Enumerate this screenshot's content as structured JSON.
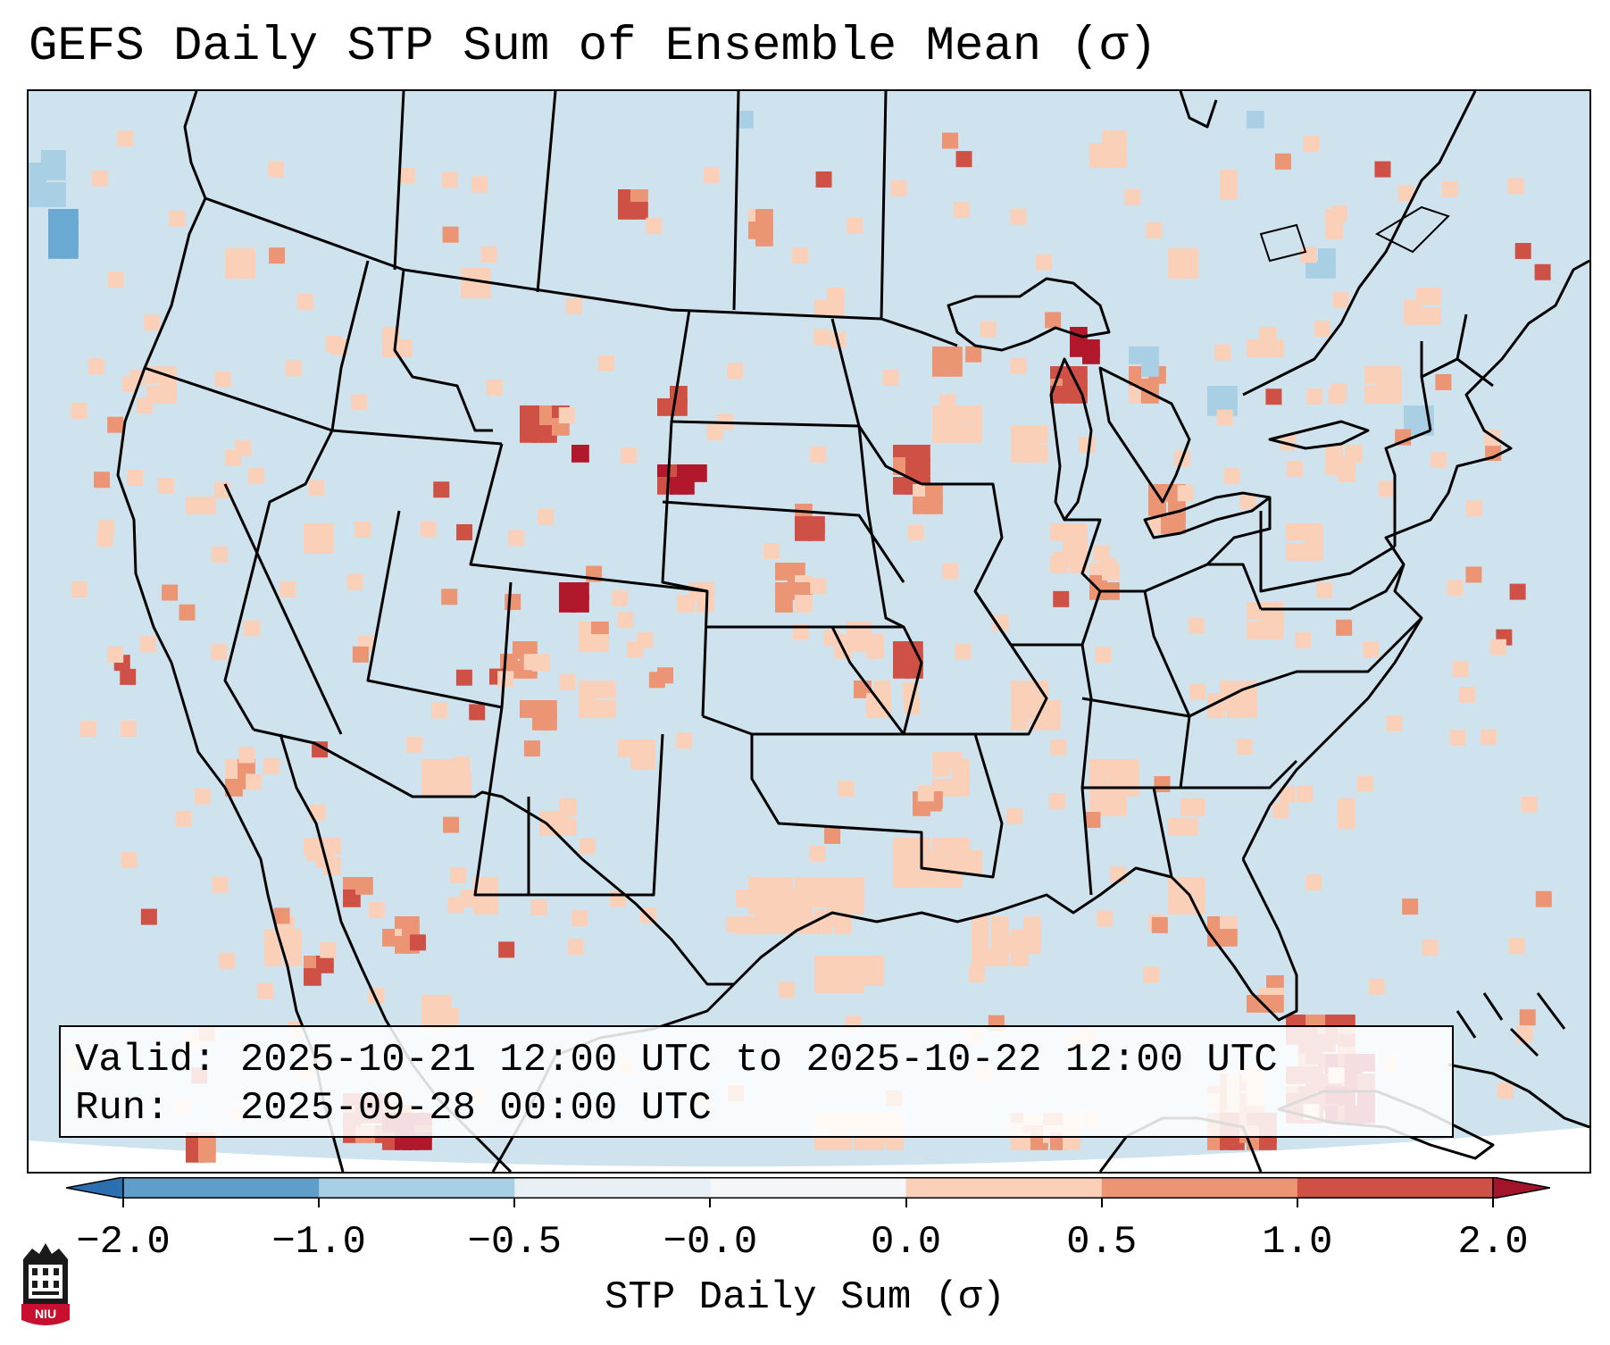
{
  "title": "GEFS Daily STP Sum of Ensemble Mean (σ)",
  "info": {
    "valid_label": "Valid:",
    "valid_value": "2025-10-21 12:00 UTC to 2025-10-22 12:00 UTC",
    "run_label": "Run:",
    "run_value": "2025-09-28 00:00 UTC"
  },
  "colorbar": {
    "label": "STP Daily Sum (σ)",
    "ticks": [
      "−2.0",
      "−1.0",
      "−0.5",
      "−0.0",
      "0.0",
      "0.5",
      "1.0",
      "2.0"
    ],
    "colors": [
      "#2b6fb0",
      "#5f9ec9",
      "#a9cfe4",
      "#e8eff5",
      "#fbd0b9",
      "#eb9575",
      "#cf5146",
      "#a3142a"
    ],
    "map_background": "#cfe3ef",
    "extend": "both"
  },
  "map": {
    "projection": "Lambert Conformal (CONUS)",
    "field": "STP daily sum anomaly (σ)",
    "features": [
      "coastlines",
      "country borders",
      "state borders",
      "great lakes"
    ]
  },
  "logo": {
    "text": "NIU",
    "icon": "university-tower-icon"
  }
}
